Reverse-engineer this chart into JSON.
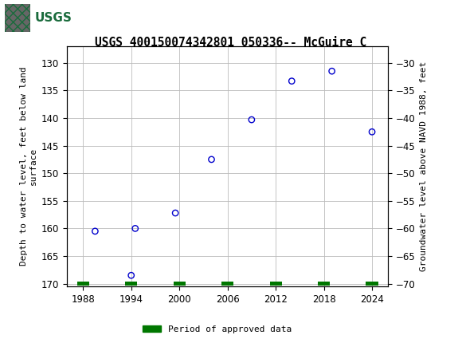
{
  "title": "USGS 400150074342801 050336-- McGuire C",
  "ylabel_left": "Depth to water level, feet below land\nsurface",
  "ylabel_right": "Groundwater level above NAVD 1988, feet",
  "xlim": [
    1986,
    2026
  ],
  "ylim_left": [
    170.5,
    127.0
  ],
  "ylim_right": [
    -70.5,
    -27.0
  ],
  "yticks_left": [
    130,
    135,
    140,
    145,
    150,
    155,
    160,
    165,
    170
  ],
  "yticks_right": [
    -30,
    -35,
    -40,
    -45,
    -50,
    -55,
    -60,
    -65,
    -70
  ],
  "xticks": [
    1988,
    1994,
    2000,
    2006,
    2012,
    2018,
    2024
  ],
  "scatter_x": [
    1989.5,
    1994.0,
    1994.5,
    1999.5,
    2004.0,
    2009.0,
    2014.0,
    2019.0,
    2024.0
  ],
  "scatter_y": [
    160.5,
    168.5,
    160.0,
    157.2,
    147.5,
    140.3,
    133.3,
    131.5,
    142.5
  ],
  "scatter_color": "#0000cc",
  "bar_x": [
    1988,
    1994,
    2000,
    2006,
    2012,
    2018,
    2024
  ],
  "bar_color": "#007700",
  "bar_width": 1.5,
  "bar_bottom": 169.6,
  "bar_height": 0.8,
  "legend_label": "Period of approved data",
  "legend_color": "#007700",
  "header_color": "#1a6b3c",
  "background_color": "#ffffff",
  "plot_bg_color": "#ffffff",
  "grid_color": "#bbbbbb",
  "title_fontsize": 10.5,
  "axis_fontsize": 8,
  "tick_fontsize": 8.5,
  "marker_size": 28
}
